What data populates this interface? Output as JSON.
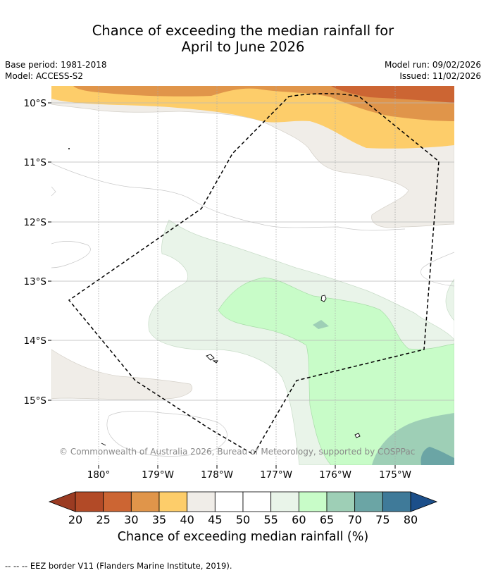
{
  "header": {
    "title_line1": "Chance of exceeding the median rainfall for",
    "title_line2": "April to June 2026",
    "base_period": "Base period: 1981-2018",
    "model": "Model: ACCESS-S2",
    "model_run": "Model run: 09/02/2026",
    "issued": "Issued: 11/02/2026"
  },
  "map": {
    "lat_labels": [
      "10°S",
      "11°S",
      "12°S",
      "13°S",
      "14°S",
      "15°S"
    ],
    "lon_labels": [
      "180°",
      "179°W",
      "178°W",
      "177°W",
      "176°W",
      "175°W"
    ],
    "copyright": "© Commonwealth of Australia 2026, Bureau of Meteorology, supported by COSPPac"
  },
  "colorbar": {
    "ticks": [
      "20",
      "25",
      "30",
      "35",
      "40",
      "45",
      "50",
      "55",
      "60",
      "65",
      "70",
      "75",
      "80"
    ],
    "colors": [
      "#b24a27",
      "#cc6533",
      "#e0954a",
      "#fdcd6a",
      "#f0ede8",
      "#ffffff",
      "#ffffff",
      "#e9f4e9",
      "#c8fcc8",
      "#9ecfb6",
      "#6ba5a5",
      "#3f7a99"
    ],
    "under_color": "#9b3b22",
    "over_color": "#1c4f8a",
    "label": "Chance of exceeding median rainfall (%)"
  },
  "footer": {
    "legend_text": "-- -- -- EEZ border V11 (Flanders Marine Institute, 2019)."
  }
}
